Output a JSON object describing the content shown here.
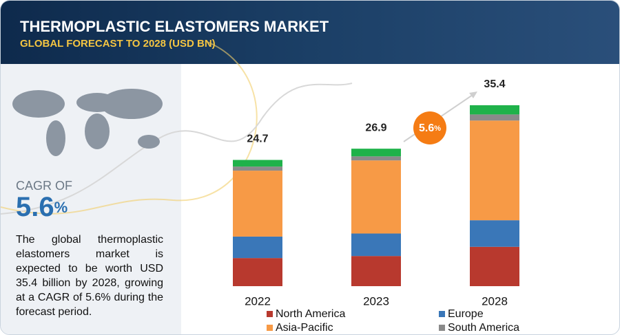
{
  "header": {
    "title": "THERMOPLASTIC ELASTOMERS MARKET",
    "subtitle": "GLOBAL FORECAST TO 2028 (USD BN)"
  },
  "sidebar": {
    "cagr_label": "CAGR OF",
    "cagr_value": "5.6",
    "cagr_unit": "%",
    "description": "The global thermoplastic elastomers market is expected to be worth USD 35.4 billion by 2028, growing at a CAGR of 5.6% during the forecast period."
  },
  "chart_data": {
    "type": "bar",
    "stacked": true,
    "categories": [
      "2022",
      "2023",
      "2028"
    ],
    "series": [
      {
        "name": "North America",
        "color": "#b8392e",
        "values": [
          5.5,
          5.9,
          7.7
        ]
      },
      {
        "name": "Europe",
        "color": "#3a77b8",
        "values": [
          4.2,
          4.4,
          5.2
        ]
      },
      {
        "name": "Asia-Pacific",
        "color": "#f79a46",
        "values": [
          12.9,
          14.3,
          19.5
        ]
      },
      {
        "name": "South America",
        "color": "#8a8a8a",
        "values": [
          0.8,
          0.8,
          1.2
        ]
      },
      {
        "color": "#1fb24a",
        "values": [
          1.3,
          1.5,
          1.8
        ]
      }
    ],
    "totals": [
      24.7,
      26.9,
      35.4
    ],
    "annotation": {
      "value": "5.6",
      "unit": "%"
    }
  }
}
